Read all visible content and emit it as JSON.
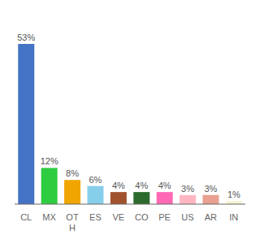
{
  "chart_data": {
    "type": "bar",
    "categories": [
      "CL",
      "MX",
      "OT\nH",
      "ES",
      "VE",
      "CO",
      "PE",
      "US",
      "AR",
      "IN"
    ],
    "values": [
      53,
      12,
      8,
      6,
      4,
      4,
      4,
      3,
      3,
      1
    ],
    "value_labels": [
      "53%",
      "12%",
      "8%",
      "6%",
      "4%",
      "4%",
      "4%",
      "3%",
      "3%",
      "1%"
    ],
    "colors": [
      "#4472c4",
      "#2ecc40",
      "#f0a500",
      "#87ceeb",
      "#a0522d",
      "#2d6a2d",
      "#ff69b4",
      "#ffb6c1",
      "#e8a090",
      "#f5f0d0"
    ],
    "ylim": [
      0,
      60
    ],
    "data_labels": true,
    "tick_labels": "x",
    "grid": false
  }
}
